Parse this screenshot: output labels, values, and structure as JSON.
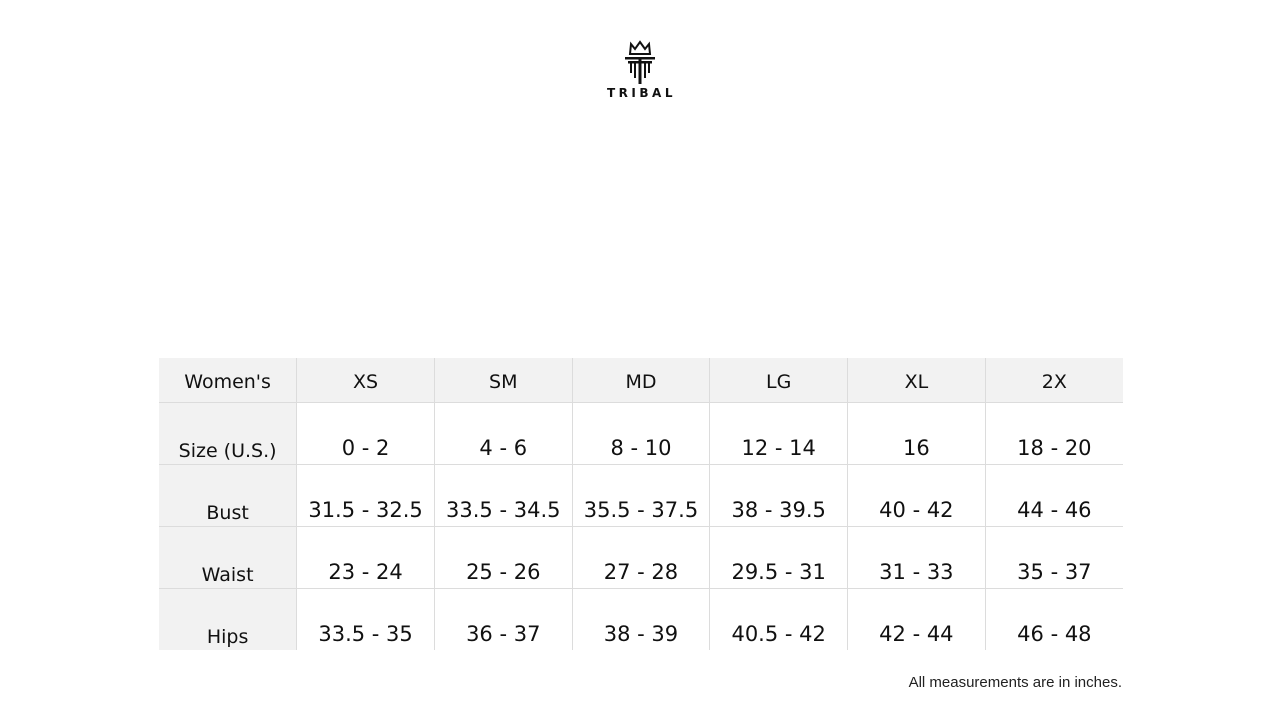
{
  "logo": {
    "text": "TRIBAL"
  },
  "table": {
    "header": [
      "Women's",
      "XS",
      "SM",
      "MD",
      "LG",
      "XL",
      "2X"
    ],
    "rows": [
      {
        "label": "Size (U.S.)",
        "values": [
          "0 - 2",
          "4 - 6",
          "8 - 10",
          "12 - 14",
          "16",
          "18 - 20"
        ]
      },
      {
        "label": "Bust",
        "values": [
          "31.5 - 32.5",
          "33.5 - 34.5",
          "35.5 - 37.5",
          "38 - 39.5",
          "40 - 42",
          "44 - 46"
        ]
      },
      {
        "label": "Waist",
        "values": [
          "23 - 24",
          "25 - 26",
          "27 - 28",
          "29.5 - 31",
          "31 - 33",
          "35 - 37"
        ]
      },
      {
        "label": "Hips",
        "values": [
          "33.5 - 35",
          "36 - 37",
          "38 - 39",
          "40.5 - 42",
          "42 - 44",
          "46 - 48"
        ]
      }
    ]
  },
  "note": "All measurements are in inches."
}
